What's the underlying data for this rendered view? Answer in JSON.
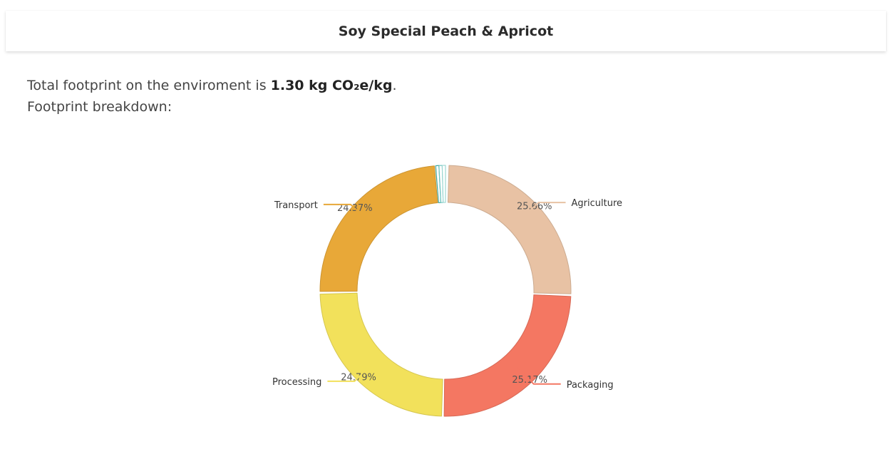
{
  "header": {
    "title": "Soy Special Peach & Apricot"
  },
  "summary": {
    "prefix": "Total footprint on the enviroment is ",
    "value": "1.30 kg CO₂e/kg",
    "suffix": ".",
    "breakdown_label": "Footprint breakdown:"
  },
  "chart_data": {
    "type": "pie",
    "donut": true,
    "slices": [
      {
        "name": "Agriculture",
        "value": 25.66,
        "label": "25.66%",
        "color": "#e8c2a4"
      },
      {
        "name": "Packaging",
        "value": 25.17,
        "label": "25.17%",
        "color": "#f47762"
      },
      {
        "name": "Processing",
        "value": 24.79,
        "label": "24.79%",
        "color": "#f2e15b"
      },
      {
        "name": "Transport",
        "value": 24.37,
        "label": "24.37%",
        "color": "#e8a838"
      },
      {
        "name": "",
        "value": 0.004,
        "label": "",
        "color": "#3fa7a0"
      },
      {
        "name": "",
        "value": 0.004,
        "label": "",
        "color": "#6cc3bd"
      },
      {
        "name": "",
        "value": 0.003,
        "label": "",
        "color": "#9ed8d3"
      }
    ]
  }
}
